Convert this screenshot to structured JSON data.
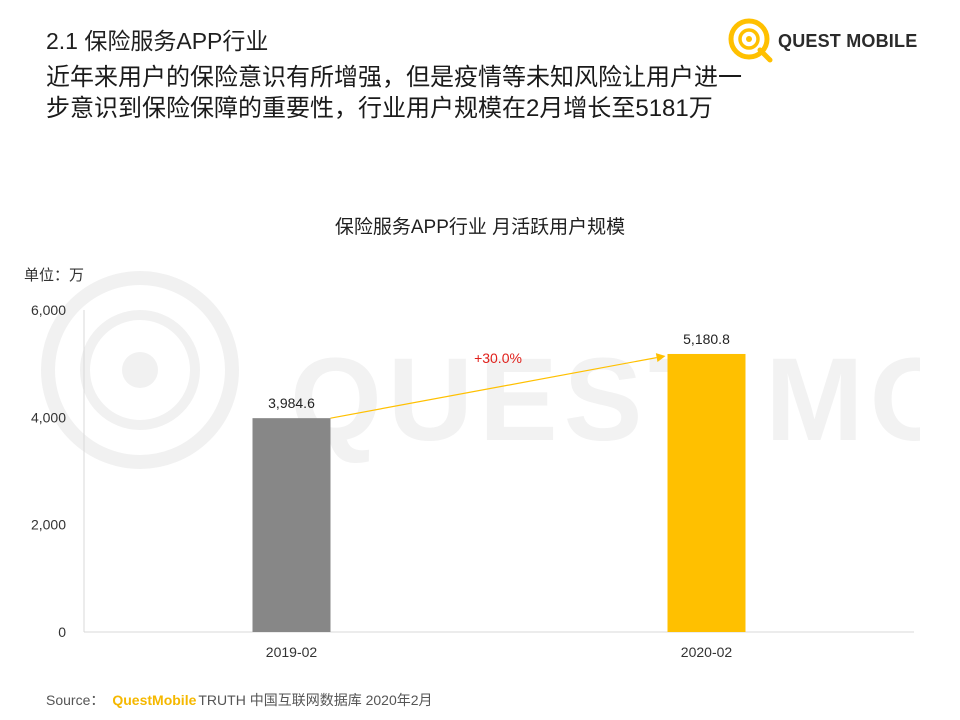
{
  "page": {
    "section_title": "2.1 保险服务APP行业",
    "headline": "近年来用户的保险意识有所增强，但是疫情等未知风险让用户进一步意识到保险保障的重要性，行业用户规模在2月增长至5181万",
    "logo_text": "QUEST MOBILE",
    "watermark_text": "QUEST MOBILE",
    "source_label": "Source：",
    "source_brand": "QuestMobile",
    "source_rest": "TRUTH 中国互联网数据库 2020年2月"
  },
  "colors": {
    "accent": "#ffc000",
    "gray_bar": "#878787",
    "growth_label": "#e0201b",
    "arrow": "#ffc000",
    "watermark": "#f0f0f0"
  },
  "chart_data": {
    "type": "bar",
    "title": "保险服务APP行业 月活跃用户规模",
    "unit_label": "单位：万",
    "categories": [
      "2019-02",
      "2020-02"
    ],
    "values": [
      3984.6,
      5180.8
    ],
    "value_labels": [
      "3,984.6",
      "5,180.8"
    ],
    "bar_colors": [
      "#878787",
      "#ffc000"
    ],
    "ylim": [
      0,
      6000
    ],
    "yticks": [
      0,
      2000,
      4000,
      6000
    ],
    "ytick_labels": [
      "0",
      "2,000",
      "4,000",
      "6,000"
    ],
    "grid": false,
    "annotation": {
      "text": "+30.0%",
      "from": 0,
      "to": 1
    }
  }
}
